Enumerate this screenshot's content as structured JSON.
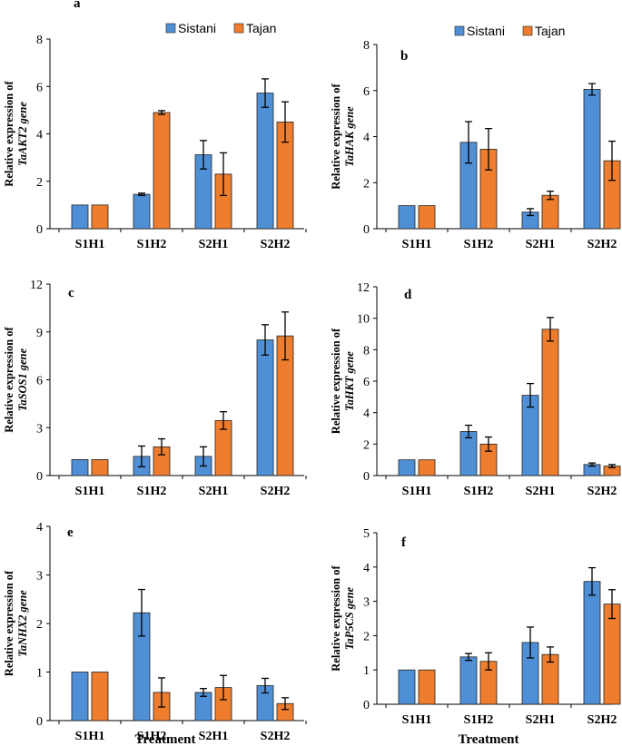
{
  "colors": {
    "sistani": "#4f8fd6",
    "tajan": "#ee7d2d",
    "axis": "#000000"
  },
  "legend": {
    "series_a": "Sistani",
    "series_b": "Tajan"
  },
  "x_axis_title": "Treatment",
  "chart_data": [
    {
      "type": "bar",
      "letter": "a",
      "ylabel_line1": "Relative expression of",
      "ylabel_line2": "TaAKT2 gene",
      "categories": [
        "S1H1",
        "S1H2",
        "S2H1",
        "S2H2"
      ],
      "ylim": [
        0,
        8
      ],
      "yticks": [
        0,
        2,
        4,
        6,
        8
      ],
      "series": [
        {
          "name": "Sistani",
          "values": [
            1.0,
            1.45,
            3.12,
            5.72
          ],
          "errors": [
            0.0,
            0.05,
            0.6,
            0.6
          ]
        },
        {
          "name": "Tajan",
          "values": [
            1.0,
            4.9,
            2.3,
            4.5
          ],
          "errors": [
            0.0,
            0.08,
            0.9,
            0.85
          ]
        }
      ]
    },
    {
      "type": "bar",
      "letter": "b",
      "ylabel_line1": "Relative expression of",
      "ylabel_line2": "TaHAK gene",
      "categories": [
        "S1H1",
        "S1H2",
        "S2H1",
        "S2H2"
      ],
      "ylim": [
        0,
        8
      ],
      "yticks": [
        0,
        2,
        4,
        6,
        8
      ],
      "series": [
        {
          "name": "Sistani",
          "values": [
            1.0,
            3.75,
            0.72,
            6.05
          ],
          "errors": [
            0.0,
            0.9,
            0.15,
            0.25
          ]
        },
        {
          "name": "Tajan",
          "values": [
            1.0,
            3.45,
            1.45,
            2.95
          ],
          "errors": [
            0.0,
            0.9,
            0.18,
            0.85
          ]
        }
      ]
    },
    {
      "type": "bar",
      "letter": "c",
      "ylabel_line1": "Relative expression of",
      "ylabel_line2": "TaSOS1 gene",
      "categories": [
        "S1H1",
        "S1H2",
        "S2H1",
        "S2H2"
      ],
      "ylim": [
        0,
        12
      ],
      "yticks": [
        0,
        3,
        6,
        9,
        12
      ],
      "series": [
        {
          "name": "Sistani",
          "values": [
            1.0,
            1.2,
            1.2,
            8.5
          ],
          "errors": [
            0.0,
            0.65,
            0.6,
            0.95
          ]
        },
        {
          "name": "Tajan",
          "values": [
            1.0,
            1.8,
            3.45,
            8.75
          ],
          "errors": [
            0.0,
            0.5,
            0.55,
            1.5
          ]
        }
      ]
    },
    {
      "type": "bar",
      "letter": "d",
      "ylabel_line1": "Relative expression of",
      "ylabel_line2": "TaHKT gene",
      "categories": [
        "S1H1",
        "S1H2",
        "S2H1",
        "S2H2"
      ],
      "ylim": [
        0,
        12
      ],
      "yticks": [
        0,
        2,
        4,
        6,
        8,
        10,
        12
      ],
      "series": [
        {
          "name": "Sistani",
          "values": [
            1.0,
            2.8,
            5.1,
            0.7
          ],
          "errors": [
            0.0,
            0.4,
            0.75,
            0.1
          ]
        },
        {
          "name": "Tajan",
          "values": [
            1.0,
            2.0,
            9.3,
            0.6
          ],
          "errors": [
            0.0,
            0.45,
            0.75,
            0.1
          ]
        }
      ]
    },
    {
      "type": "bar",
      "letter": "e",
      "ylabel_line1": "Relative expression of",
      "ylabel_line2": "TaNHX2 gene",
      "categories": [
        "S1H1",
        "S1H2",
        "S2H1",
        "S2H2"
      ],
      "ylim": [
        0,
        4
      ],
      "yticks": [
        0,
        1,
        2,
        3,
        4
      ],
      "series": [
        {
          "name": "Sistani",
          "values": [
            1.0,
            2.22,
            0.58,
            0.72
          ],
          "errors": [
            0.0,
            0.48,
            0.08,
            0.15
          ]
        },
        {
          "name": "Tajan",
          "values": [
            1.0,
            0.58,
            0.68,
            0.35
          ],
          "errors": [
            0.0,
            0.3,
            0.25,
            0.12
          ]
        }
      ]
    },
    {
      "type": "bar",
      "letter": "f",
      "ylabel_line1": "Relative expression of",
      "ylabel_line2": "TaP5CS gene",
      "categories": [
        "S1H1",
        "S1H2",
        "S2H1",
        "S2H2"
      ],
      "ylim": [
        0,
        5
      ],
      "yticks": [
        0,
        1,
        2,
        3,
        4,
        5
      ],
      "series": [
        {
          "name": "Sistani",
          "values": [
            1.0,
            1.38,
            1.8,
            3.58
          ],
          "errors": [
            0.0,
            0.1,
            0.45,
            0.4
          ]
        },
        {
          "name": "Tajan",
          "values": [
            1.0,
            1.25,
            1.45,
            2.92
          ],
          "errors": [
            0.0,
            0.25,
            0.22,
            0.42
          ]
        }
      ]
    }
  ]
}
